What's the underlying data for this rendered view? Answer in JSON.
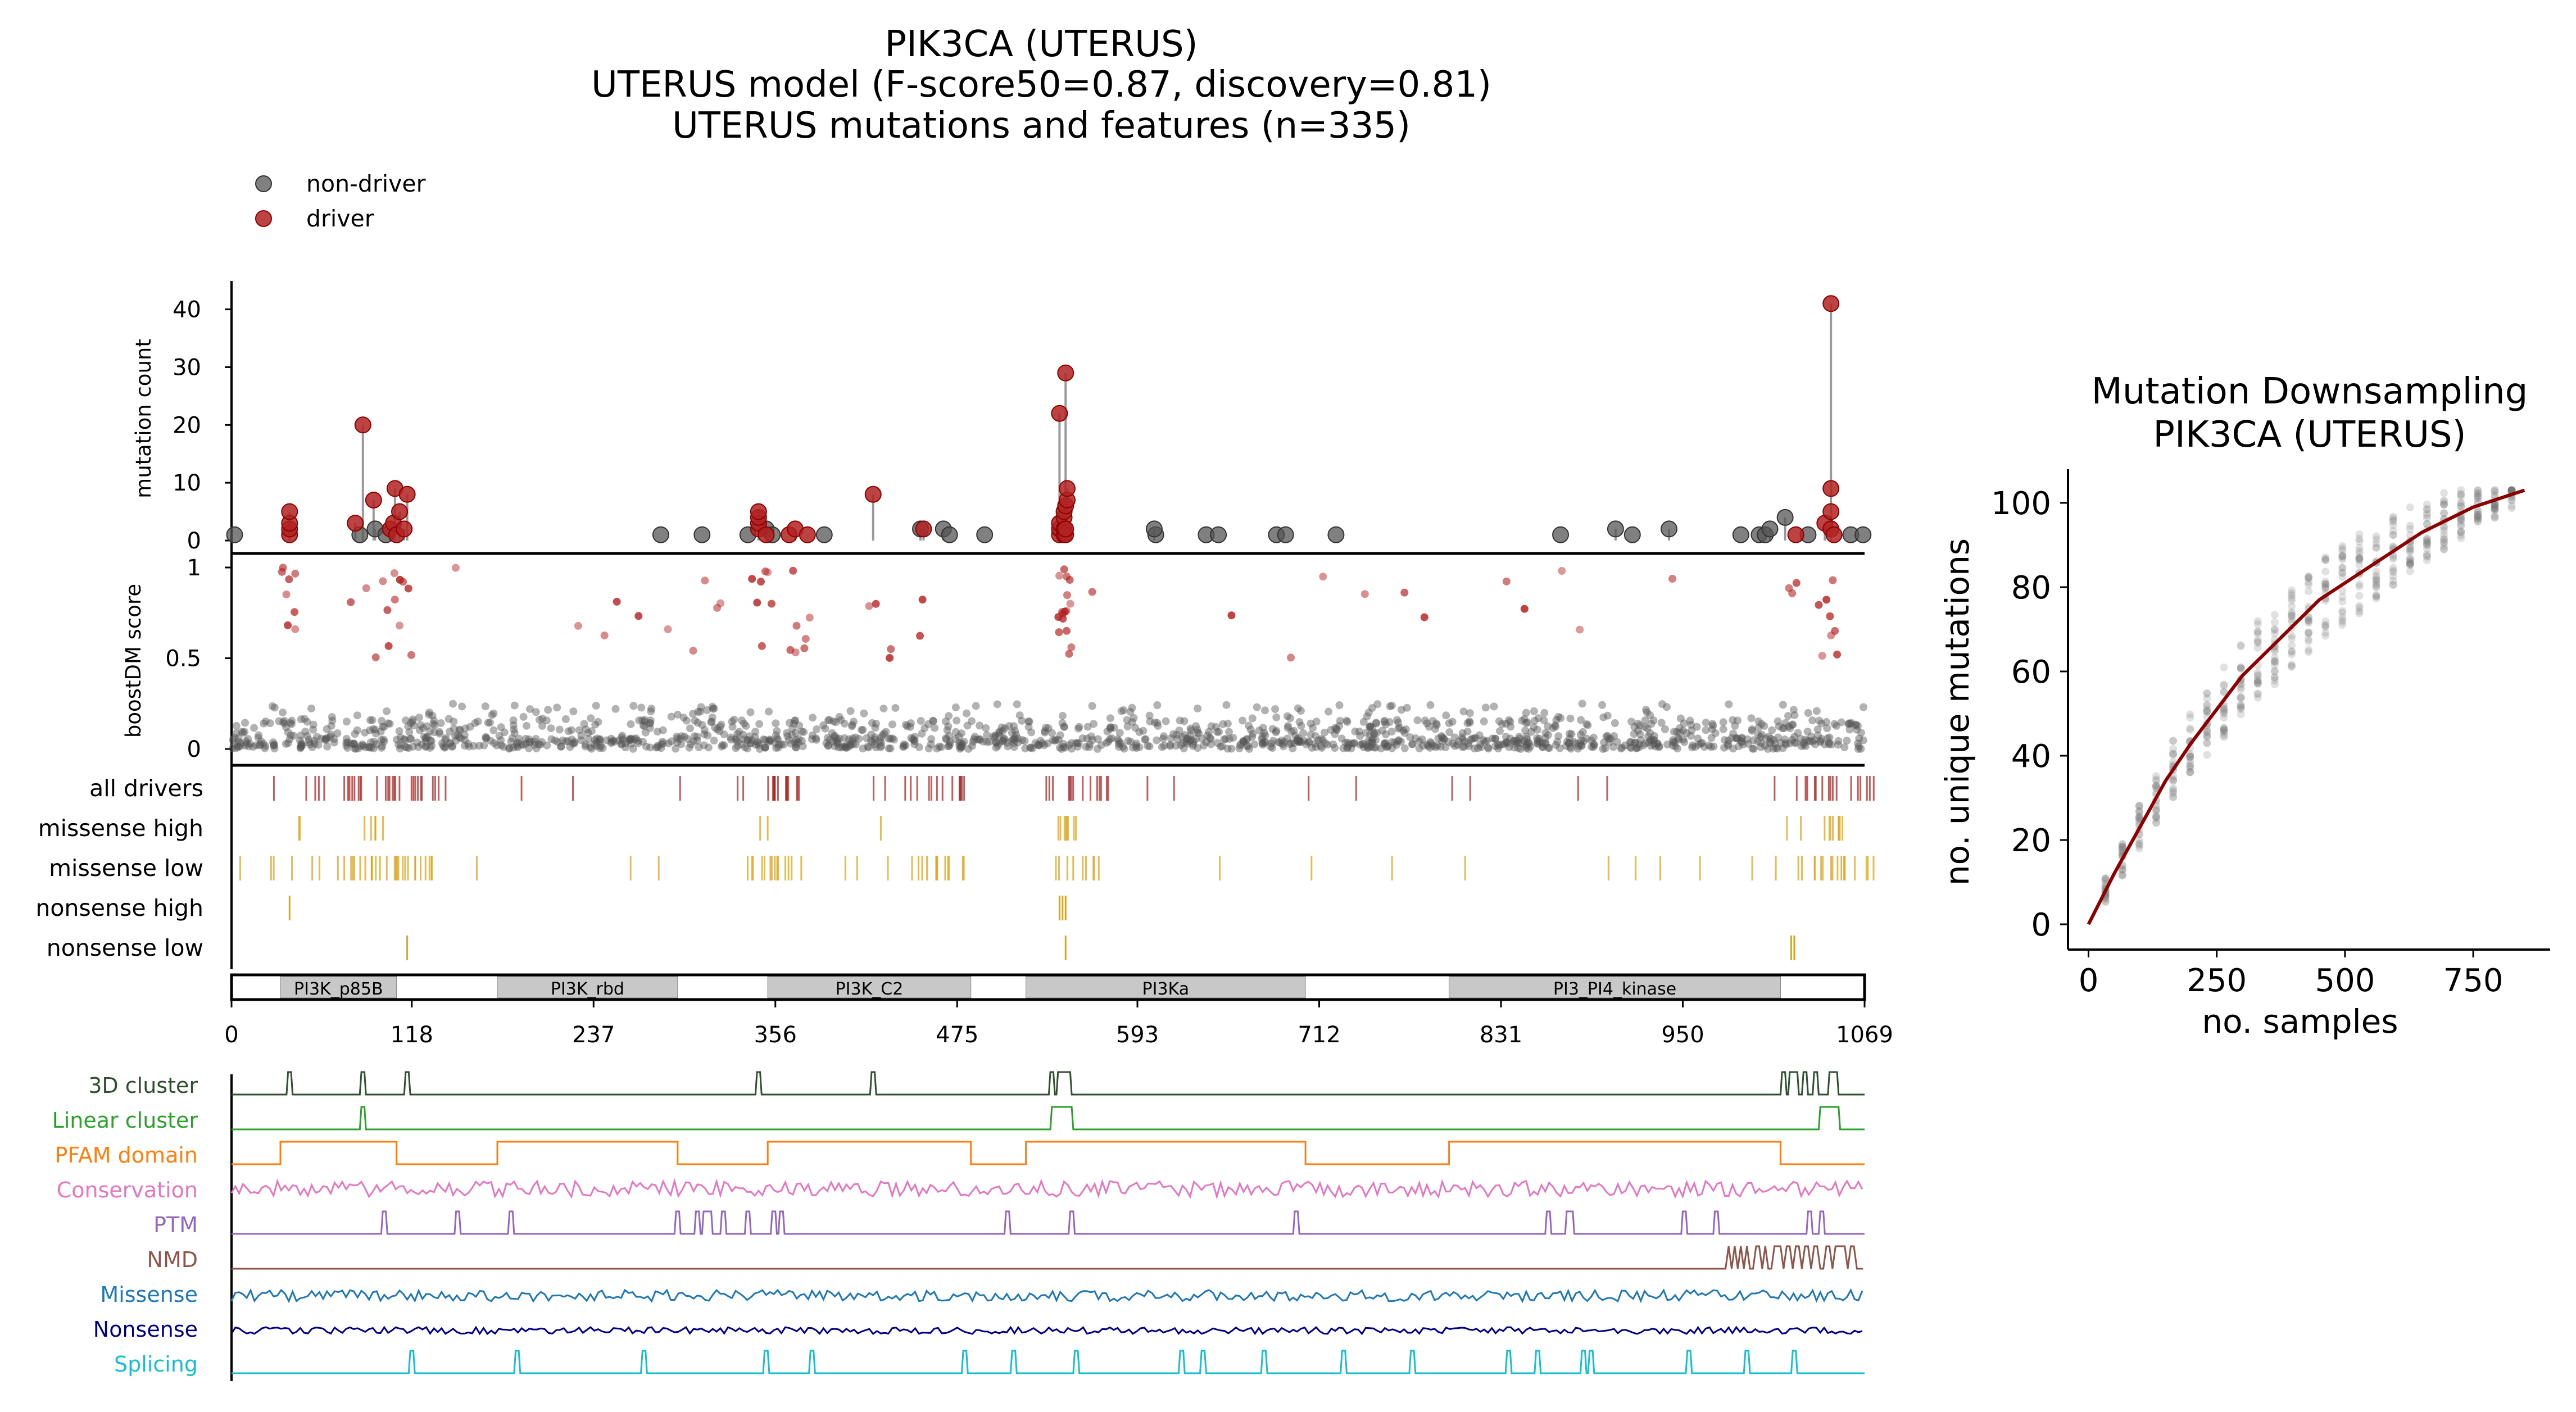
{
  "colors": {
    "driver": "#b22222",
    "non_driver": "#555555",
    "drivers_track": "#a52a2a",
    "missense_track": "#daa520",
    "domain_fill": "#c8c8c8",
    "downsampling_curve": "#8b0000"
  },
  "chart_data": [
    {
      "type": "scatter",
      "name": "lollipop",
      "title_lines": [
        "PIK3CA (UTERUS)",
        "UTERUS model (F-score50=0.87, discovery=0.81)",
        "UTERUS mutations and features (n=335)"
      ],
      "legend": [
        "non-driver",
        "driver"
      ],
      "legend_position": "top-left",
      "ylabel": "mutation count",
      "ylim": [
        0,
        42
      ],
      "yticks": [
        0,
        10,
        20,
        30,
        40
      ],
      "xlim": [
        0,
        1069
      ],
      "driver_points": [
        [
          38,
          1
        ],
        [
          38,
          2
        ],
        [
          38,
          3
        ],
        [
          38,
          5
        ],
        [
          81,
          3
        ],
        [
          86,
          20
        ],
        [
          93,
          7
        ],
        [
          104,
          2
        ],
        [
          106,
          3
        ],
        [
          107,
          9
        ],
        [
          108,
          1
        ],
        [
          110,
          5
        ],
        [
          113,
          2
        ],
        [
          115,
          8
        ],
        [
          345,
          2
        ],
        [
          345,
          3
        ],
        [
          345,
          4
        ],
        [
          345,
          5
        ],
        [
          350,
          1
        ],
        [
          365,
          1
        ],
        [
          369,
          2
        ],
        [
          377,
          1
        ],
        [
          420,
          8
        ],
        [
          453,
          2
        ],
        [
          542,
          1
        ],
        [
          542,
          2
        ],
        [
          542,
          3
        ],
        [
          542,
          22
        ],
        [
          545,
          1
        ],
        [
          545,
          2
        ],
        [
          545,
          4
        ],
        [
          545,
          5
        ],
        [
          546,
          1
        ],
        [
          546,
          2
        ],
        [
          546,
          6
        ],
        [
          546,
          29
        ],
        [
          547,
          7
        ],
        [
          547,
          9
        ],
        [
          1024,
          1
        ],
        [
          1043,
          3
        ],
        [
          1047,
          2
        ],
        [
          1047,
          41
        ],
        [
          1047,
          5
        ],
        [
          1047,
          9
        ],
        [
          1049,
          1
        ]
      ],
      "nondriver_points": [
        [
          2,
          1
        ],
        [
          84,
          1
        ],
        [
          94,
          2
        ],
        [
          101,
          1
        ],
        [
          281,
          1
        ],
        [
          308,
          1
        ],
        [
          338,
          1
        ],
        [
          350,
          2
        ],
        [
          354,
          1
        ],
        [
          388,
          1
        ],
        [
          451,
          2
        ],
        [
          466,
          2
        ],
        [
          470,
          1
        ],
        [
          493,
          1
        ],
        [
          605,
          1
        ],
        [
          604,
          2
        ],
        [
          638,
          1
        ],
        [
          646,
          1
        ],
        [
          684,
          1
        ],
        [
          690,
          1
        ],
        [
          723,
          1
        ],
        [
          870,
          1
        ],
        [
          906,
          2
        ],
        [
          917,
          1
        ],
        [
          941,
          2
        ],
        [
          988,
          1
        ],
        [
          1000,
          1
        ],
        [
          1004,
          1
        ],
        [
          1007,
          2
        ],
        [
          1017,
          4
        ],
        [
          1032,
          1
        ],
        [
          1060,
          1
        ],
        [
          1068,
          1
        ]
      ]
    },
    {
      "type": "scatter",
      "name": "boostDM",
      "ylabel": "boostDM score",
      "ylim": [
        0,
        1
      ],
      "yticks": [
        0,
        0.5,
        1
      ],
      "ytick_labels": [
        "0",
        "0.5",
        "1"
      ]
    },
    {
      "type": "table",
      "name": "mutation tracks",
      "tracks": [
        "all drivers",
        "missense high",
        "missense low",
        "nonsense high",
        "nonsense low"
      ],
      "nonsense_high_positions": [
        38,
        542,
        544,
        546
      ],
      "nonsense_low_positions": [
        115,
        546,
        1021,
        1023
      ]
    },
    {
      "type": "bar",
      "name": "PFAM domains",
      "domains": [
        {
          "label": "PI3K_p85B",
          "start": 32,
          "end": 108
        },
        {
          "label": "PI3K_rbd",
          "start": 174,
          "end": 292
        },
        {
          "label": "PI3K_C2",
          "start": 351,
          "end": 484
        },
        {
          "label": "PI3Ka",
          "start": 520,
          "end": 703
        },
        {
          "label": "PI3_PI4_kinase",
          "start": 797,
          "end": 1014
        }
      ],
      "xlim": [
        0,
        1069
      ],
      "xticks": [
        0,
        118,
        237,
        356,
        475,
        593,
        712,
        831,
        950,
        1069
      ]
    },
    {
      "type": "line",
      "name": "features",
      "series": [
        {
          "name": "3D cluster",
          "color": "#2f4f2f"
        },
        {
          "name": "Linear cluster",
          "color": "#2ca02c"
        },
        {
          "name": "PFAM domain",
          "color": "#ff7f0e"
        },
        {
          "name": "Conservation",
          "color": "#e377c2"
        },
        {
          "name": "PTM",
          "color": "#9467bd"
        },
        {
          "name": "NMD",
          "color": "#8c564b"
        },
        {
          "name": "Missense",
          "color": "#1f77b4"
        },
        {
          "name": "Nonsense",
          "color": "#000080"
        },
        {
          "name": "Splicing",
          "color": "#17becf"
        }
      ]
    },
    {
      "type": "line",
      "name": "downsampling",
      "title_lines": [
        "Mutation Downsampling",
        "PIK3CA (UTERUS)"
      ],
      "xlabel": "no. samples",
      "ylabel": "no. unique mutations",
      "xlim": [
        -40,
        900
      ],
      "ylim": [
        -6,
        108
      ],
      "xticks": [
        0,
        250,
        500,
        750
      ],
      "yticks": [
        0,
        20,
        40,
        60,
        80,
        100
      ],
      "curve": [
        [
          0,
          0
        ],
        [
          50,
          12
        ],
        [
          100,
          23
        ],
        [
          150,
          34
        ],
        [
          200,
          43
        ],
        [
          250,
          51
        ],
        [
          300,
          59
        ],
        [
          350,
          65
        ],
        [
          400,
          71
        ],
        [
          450,
          77
        ],
        [
          500,
          81
        ],
        [
          550,
          85
        ],
        [
          600,
          89
        ],
        [
          650,
          93
        ],
        [
          700,
          96
        ],
        [
          750,
          99
        ],
        [
          800,
          101
        ],
        [
          850,
          103
        ]
      ],
      "max_mutations": 103
    }
  ]
}
